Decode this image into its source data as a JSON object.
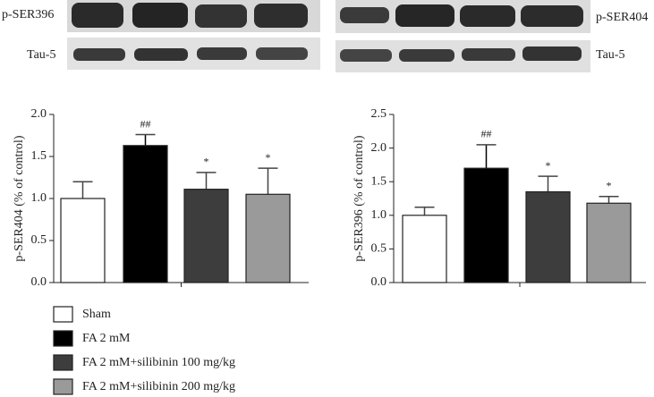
{
  "blots": {
    "left": [
      "p-SER396",
      "Tau-5"
    ],
    "right": [
      "p-SER404",
      "Tau-5"
    ]
  },
  "chart_data": [
    {
      "type": "bar",
      "ylabel": "p-SER404 (% of control)",
      "values": [
        1.0,
        1.63,
        1.11,
        1.05
      ],
      "errors": [
        0.2,
        0.13,
        0.2,
        0.31
      ],
      "annotations": [
        null,
        "##",
        "*",
        "*"
      ],
      "colors": [
        "#ffffff",
        "#000000",
        "#3d3d3d",
        "#9a9a9a"
      ],
      "ylim": [
        0,
        2.0
      ],
      "yticks": [
        {
          "value": 0,
          "label": "0.0"
        },
        {
          "value": 0.5,
          "label": "0.5"
        },
        {
          "value": 1,
          "label": "1.0"
        },
        {
          "value": 1.5,
          "label": "1.5"
        },
        {
          "value": 2,
          "label": "2.0"
        }
      ]
    },
    {
      "type": "bar",
      "ylabel": "p-SER396 (% of control)",
      "values": [
        1.0,
        1.7,
        1.35,
        1.18
      ],
      "errors": [
        0.12,
        0.35,
        0.23,
        0.1
      ],
      "annotations": [
        null,
        "##",
        "*",
        "*"
      ],
      "colors": [
        "#ffffff",
        "#000000",
        "#3d3d3d",
        "#9a9a9a"
      ],
      "ylim": [
        0,
        2.5
      ],
      "yticks": [
        {
          "value": 0,
          "label": "0.0"
        },
        {
          "value": 0.5,
          "label": "0.5"
        },
        {
          "value": 1,
          "label": "1.0"
        },
        {
          "value": 1.5,
          "label": "1.5"
        },
        {
          "value": 2,
          "label": "2.0"
        },
        {
          "value": 2.5,
          "label": "2.5"
        }
      ]
    }
  ],
  "legend": [
    {
      "name": "Sham",
      "color": "#ffffff"
    },
    {
      "name": "FA 2 mM",
      "color": "#000000"
    },
    {
      "name": "FA 2 mM+silibinin 100 mg/kg",
      "color": "#3d3d3d"
    },
    {
      "name": "FA 2 mM+silibinin 200 mg/kg",
      "color": "#9a9a9a"
    }
  ]
}
